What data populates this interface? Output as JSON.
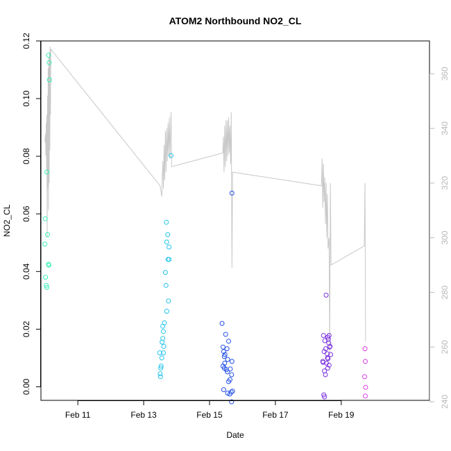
{
  "chart_data": {
    "type": "scatter",
    "title": "ATOM2 Northbound NO2_CL",
    "xlabel": "Date",
    "ylabel": "NO2_CL",
    "x_ticks": [
      {
        "day": 11,
        "label": "Feb 11"
      },
      {
        "day": 13,
        "label": "Feb 13"
      },
      {
        "day": 15,
        "label": "Feb 15"
      },
      {
        "day": 17,
        "label": "Feb 17"
      },
      {
        "day": 19,
        "label": "Feb 19"
      }
    ],
    "xlim": [
      9.88,
      21.68
    ],
    "ylim": [
      -0.0047,
      0.12
    ],
    "y_ticks": [
      {
        "value": 0.0,
        "label": "0.00"
      },
      {
        "value": 0.02,
        "label": "0.02"
      },
      {
        "value": 0.04,
        "label": "0.04"
      },
      {
        "value": 0.06,
        "label": "0.06"
      },
      {
        "value": 0.08,
        "label": "0.08"
      },
      {
        "value": 0.1,
        "label": "0.10"
      },
      {
        "value": 0.12,
        "label": "0.12"
      }
    ],
    "y2lim": [
      240.5,
      372
    ],
    "y2_ticks": [
      {
        "value": 240,
        "label": "240"
      },
      {
        "value": 260,
        "label": "260"
      },
      {
        "value": 280,
        "label": "280"
      },
      {
        "value": 300,
        "label": "300"
      },
      {
        "value": 320,
        "label": "320"
      },
      {
        "value": 340,
        "label": "340"
      },
      {
        "value": 360,
        "label": "360"
      }
    ],
    "points": [
      {
        "x": 10.11,
        "y": 0.115,
        "color": "#33f0b8"
      },
      {
        "x": 10.13,
        "y": 0.1125,
        "color": "#33f0b8"
      },
      {
        "x": 10.14,
        "y": 0.1065,
        "color": "#33f0b8"
      },
      {
        "x": 10.06,
        "y": 0.0745,
        "color": "#33f0b8"
      },
      {
        "x": 10.01,
        "y": 0.0583,
        "color": "#33f0b8"
      },
      {
        "x": 10.08,
        "y": 0.0528,
        "color": "#33f0b8"
      },
      {
        "x": 10.0,
        "y": 0.0495,
        "color": "#33f0b8"
      },
      {
        "x": 10.11,
        "y": 0.0425,
        "color": "#33f0b8"
      },
      {
        "x": 10.12,
        "y": 0.0422,
        "color": "#33f0b8"
      },
      {
        "x": 10.02,
        "y": 0.038,
        "color": "#33f0b8"
      },
      {
        "x": 10.04,
        "y": 0.0352,
        "color": "#33f0b8"
      },
      {
        "x": 10.06,
        "y": 0.0345,
        "color": "#33f0b8"
      },
      {
        "x": 13.83,
        "y": 0.0802,
        "color": "#22c3ea"
      },
      {
        "x": 13.69,
        "y": 0.0571,
        "color": "#22c3ea"
      },
      {
        "x": 13.73,
        "y": 0.0528,
        "color": "#22c3ea"
      },
      {
        "x": 13.7,
        "y": 0.0502,
        "color": "#22c3ea"
      },
      {
        "x": 13.77,
        "y": 0.0485,
        "color": "#22c3ea"
      },
      {
        "x": 13.74,
        "y": 0.0442,
        "color": "#22c3ea"
      },
      {
        "x": 13.77,
        "y": 0.0442,
        "color": "#22c3ea"
      },
      {
        "x": 13.66,
        "y": 0.0397,
        "color": "#22c3ea"
      },
      {
        "x": 13.68,
        "y": 0.0352,
        "color": "#22c3ea"
      },
      {
        "x": 13.75,
        "y": 0.0298,
        "color": "#22c3ea"
      },
      {
        "x": 13.7,
        "y": 0.0262,
        "color": "#22c3ea"
      },
      {
        "x": 13.63,
        "y": 0.0222,
        "color": "#22c3ea"
      },
      {
        "x": 13.58,
        "y": 0.021,
        "color": "#22c3ea"
      },
      {
        "x": 13.6,
        "y": 0.0192,
        "color": "#22c3ea"
      },
      {
        "x": 13.58,
        "y": 0.0168,
        "color": "#22c3ea"
      },
      {
        "x": 13.56,
        "y": 0.0155,
        "color": "#22c3ea"
      },
      {
        "x": 13.61,
        "y": 0.014,
        "color": "#22c3ea"
      },
      {
        "x": 13.49,
        "y": 0.0118,
        "color": "#22c3ea"
      },
      {
        "x": 13.6,
        "y": 0.0118,
        "color": "#22c3ea"
      },
      {
        "x": 13.55,
        "y": 0.01,
        "color": "#22c3ea"
      },
      {
        "x": 13.53,
        "y": 0.0072,
        "color": "#22c3ea"
      },
      {
        "x": 13.52,
        "y": 0.0065,
        "color": "#22c3ea"
      },
      {
        "x": 13.5,
        "y": 0.0045,
        "color": "#22c3ea"
      },
      {
        "x": 13.51,
        "y": 0.0035,
        "color": "#22c3ea"
      },
      {
        "x": 15.68,
        "y": 0.0672,
        "color": "#2250e6"
      },
      {
        "x": 15.38,
        "y": 0.022,
        "color": "#2250e6"
      },
      {
        "x": 15.49,
        "y": 0.0182,
        "color": "#2250e6"
      },
      {
        "x": 15.58,
        "y": 0.0158,
        "color": "#2250e6"
      },
      {
        "x": 15.41,
        "y": 0.0138,
        "color": "#2250e6"
      },
      {
        "x": 15.53,
        "y": 0.0132,
        "color": "#2250e6"
      },
      {
        "x": 15.43,
        "y": 0.0122,
        "color": "#2250e6"
      },
      {
        "x": 15.47,
        "y": 0.0112,
        "color": "#2250e6"
      },
      {
        "x": 15.45,
        "y": 0.0105,
        "color": "#2250e6"
      },
      {
        "x": 15.55,
        "y": 0.0095,
        "color": "#2250e6"
      },
      {
        "x": 15.68,
        "y": 0.0088,
        "color": "#2250e6"
      },
      {
        "x": 15.46,
        "y": 0.0082,
        "color": "#2250e6"
      },
      {
        "x": 15.41,
        "y": 0.0072,
        "color": "#2250e6"
      },
      {
        "x": 15.45,
        "y": 0.0065,
        "color": "#2250e6"
      },
      {
        "x": 15.63,
        "y": 0.0062,
        "color": "#2250e6"
      },
      {
        "x": 15.51,
        "y": 0.006,
        "color": "#2250e6"
      },
      {
        "x": 15.54,
        "y": 0.0052,
        "color": "#2250e6"
      },
      {
        "x": 15.67,
        "y": 0.0042,
        "color": "#2250e6"
      },
      {
        "x": 15.62,
        "y": 0.0025,
        "color": "#2250e6"
      },
      {
        "x": 15.58,
        "y": 0.0018,
        "color": "#2250e6"
      },
      {
        "x": 15.43,
        "y": -0.001,
        "color": "#2250e6"
      },
      {
        "x": 15.7,
        "y": -0.0015,
        "color": "#2250e6"
      },
      {
        "x": 15.66,
        "y": -0.0018,
        "color": "#2250e6"
      },
      {
        "x": 15.55,
        "y": -0.0022,
        "color": "#2250e6"
      },
      {
        "x": 15.62,
        "y": -0.0025,
        "color": "#2250e6"
      },
      {
        "x": 15.67,
        "y": -0.0052,
        "color": "#2250e6"
      },
      {
        "x": 18.54,
        "y": 0.0318,
        "color": "#7a2ee0"
      },
      {
        "x": 18.46,
        "y": 0.0178,
        "color": "#7a2ee0"
      },
      {
        "x": 18.63,
        "y": 0.0178,
        "color": "#7a2ee0"
      },
      {
        "x": 18.59,
        "y": 0.0172,
        "color": "#7a2ee0"
      },
      {
        "x": 18.61,
        "y": 0.0165,
        "color": "#7a2ee0"
      },
      {
        "x": 18.5,
        "y": 0.016,
        "color": "#7a2ee0"
      },
      {
        "x": 18.62,
        "y": 0.0152,
        "color": "#7a2ee0"
      },
      {
        "x": 18.66,
        "y": 0.014,
        "color": "#7a2ee0"
      },
      {
        "x": 18.65,
        "y": 0.0138,
        "color": "#7a2ee0"
      },
      {
        "x": 18.53,
        "y": 0.0132,
        "color": "#7a2ee0"
      },
      {
        "x": 18.48,
        "y": 0.0122,
        "color": "#7a2ee0"
      },
      {
        "x": 18.57,
        "y": 0.0115,
        "color": "#7a2ee0"
      },
      {
        "x": 18.68,
        "y": 0.0112,
        "color": "#7a2ee0"
      },
      {
        "x": 18.58,
        "y": 0.01,
        "color": "#7a2ee0"
      },
      {
        "x": 18.6,
        "y": 0.0098,
        "color": "#7a2ee0"
      },
      {
        "x": 18.44,
        "y": 0.0088,
        "color": "#7a2ee0"
      },
      {
        "x": 18.45,
        "y": 0.0085,
        "color": "#7a2ee0"
      },
      {
        "x": 18.55,
        "y": 0.0082,
        "color": "#7a2ee0"
      },
      {
        "x": 18.63,
        "y": 0.0075,
        "color": "#7a2ee0"
      },
      {
        "x": 18.59,
        "y": 0.0065,
        "color": "#7a2ee0"
      },
      {
        "x": 18.49,
        "y": 0.0055,
        "color": "#7a2ee0"
      },
      {
        "x": 18.52,
        "y": 0.0042,
        "color": "#7a2ee0"
      },
      {
        "x": 18.47,
        "y": -0.0028,
        "color": "#7a2ee0"
      },
      {
        "x": 18.49,
        "y": -0.0035,
        "color": "#7a2ee0"
      },
      {
        "x": 19.72,
        "y": 0.0132,
        "color": "#d63ee0"
      },
      {
        "x": 19.73,
        "y": 0.0088,
        "color": "#d63ee0"
      },
      {
        "x": 19.71,
        "y": 0.0035,
        "color": "#d63ee0"
      },
      {
        "x": 19.74,
        "y": -0.0002,
        "color": "#d63ee0"
      },
      {
        "x": 19.73,
        "y": -0.0032,
        "color": "#d63ee0"
      }
    ],
    "line": {
      "axis": "right",
      "color": "#c8c8c8",
      "points": [
        [
          10.0,
          335
        ],
        [
          10.02,
          338
        ],
        [
          10.03,
          330
        ],
        [
          10.04,
          342
        ],
        [
          10.05,
          325
        ],
        [
          10.06,
          345
        ],
        [
          10.07,
          300
        ],
        [
          10.08,
          352
        ],
        [
          10.09,
          318
        ],
        [
          10.1,
          362
        ],
        [
          10.11,
          310
        ],
        [
          10.12,
          366
        ],
        [
          10.13,
          320
        ],
        [
          10.14,
          368
        ],
        [
          10.15,
          332
        ],
        [
          10.16,
          370
        ],
        [
          10.17,
          345
        ],
        [
          10.18,
          369
        ],
        [
          13.5,
          319
        ],
        [
          13.55,
          315
        ],
        [
          13.58,
          328
        ],
        [
          13.6,
          318
        ],
        [
          13.62,
          334
        ],
        [
          13.64,
          321
        ],
        [
          13.66,
          339
        ],
        [
          13.68,
          324
        ],
        [
          13.7,
          340
        ],
        [
          13.72,
          328
        ],
        [
          13.74,
          342
        ],
        [
          13.76,
          330
        ],
        [
          13.78,
          344
        ],
        [
          13.8,
          329
        ],
        [
          13.83,
          346
        ],
        [
          13.85,
          326
        ],
        [
          15.4,
          331
        ],
        [
          15.42,
          337
        ],
        [
          15.44,
          324
        ],
        [
          15.46,
          341
        ],
        [
          15.48,
          326
        ],
        [
          15.5,
          343
        ],
        [
          15.52,
          328
        ],
        [
          15.54,
          343
        ],
        [
          15.56,
          330
        ],
        [
          15.58,
          344
        ],
        [
          15.6,
          331
        ],
        [
          15.62,
          341
        ],
        [
          15.64,
          327
        ],
        [
          15.66,
          346
        ],
        [
          15.68,
          289
        ],
        [
          15.7,
          324
        ],
        [
          18.4,
          319
        ],
        [
          18.42,
          329
        ],
        [
          18.44,
          311
        ],
        [
          18.46,
          327
        ],
        [
          18.48,
          313
        ],
        [
          18.5,
          322
        ],
        [
          18.52,
          305
        ],
        [
          18.54,
          320
        ],
        [
          18.56,
          300
        ],
        [
          18.58,
          316
        ],
        [
          18.6,
          296
        ],
        [
          18.63,
          300
        ],
        [
          18.65,
          257
        ],
        [
          18.67,
          320
        ],
        [
          18.69,
          290
        ],
        [
          19.7,
          297
        ],
        [
          19.72,
          320
        ],
        [
          19.74,
          262
        ]
      ]
    }
  }
}
